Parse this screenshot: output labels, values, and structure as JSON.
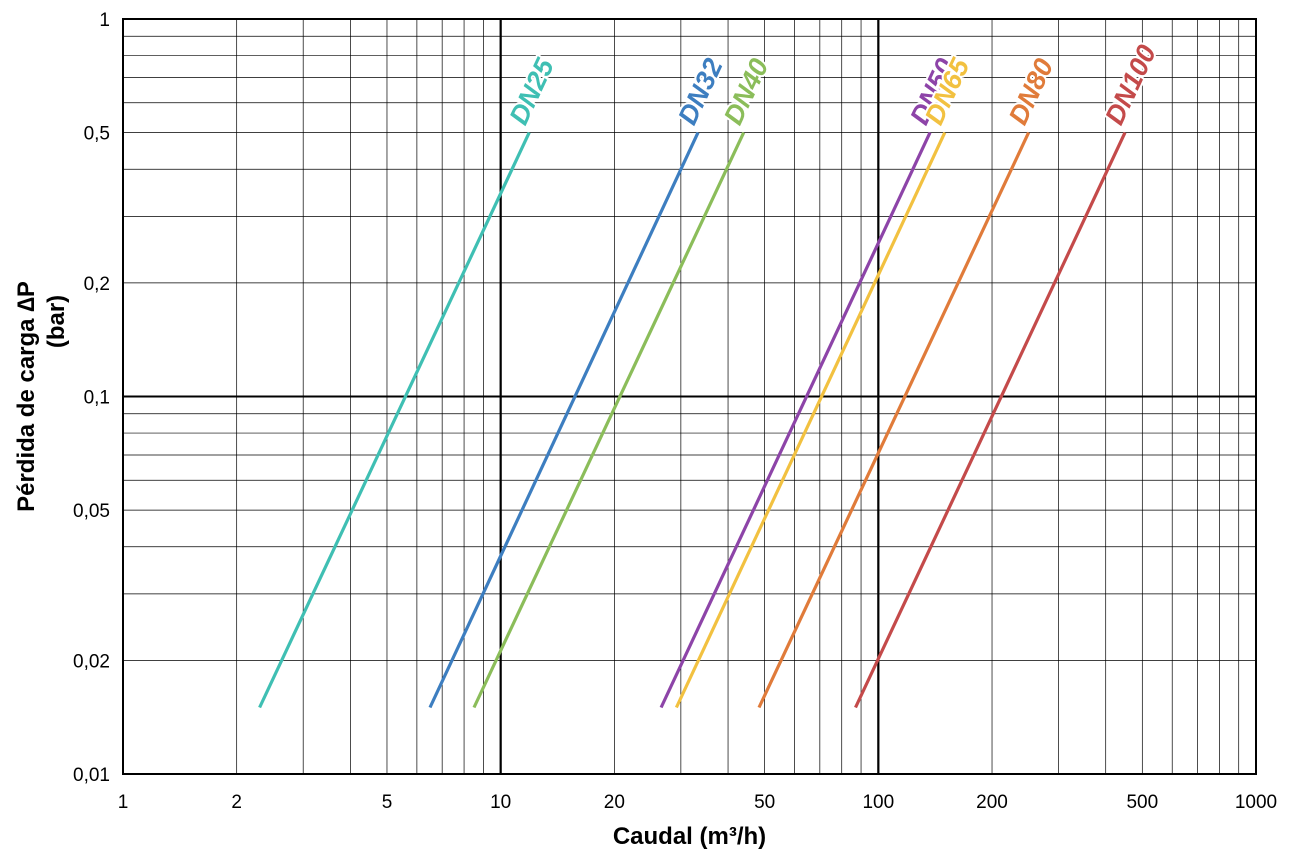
{
  "chart_data": {
    "type": "line",
    "x_scale": "log",
    "y_scale": "log",
    "xlim": [
      1,
      1000
    ],
    "ylim": [
      0.01,
      1
    ],
    "grid": true,
    "xlabel": "Caudal (m³/h)",
    "ylabel_line1": "Pérdida de carga ∆P",
    "ylabel_line2": "(bar)",
    "x_ticks": [
      {
        "value": 1,
        "label": "1"
      },
      {
        "value": 2,
        "label": "2"
      },
      {
        "value": 5,
        "label": "5"
      },
      {
        "value": 10,
        "label": "10"
      },
      {
        "value": 20,
        "label": "20"
      },
      {
        "value": 50,
        "label": "50"
      },
      {
        "value": 100,
        "label": "100"
      },
      {
        "value": 200,
        "label": "200"
      },
      {
        "value": 500,
        "label": "500"
      },
      {
        "value": 1000,
        "label": "1000"
      }
    ],
    "y_ticks": [
      {
        "value": 0.01,
        "label": "0,01"
      },
      {
        "value": 0.02,
        "label": "0,02"
      },
      {
        "value": 0.05,
        "label": "0,05"
      },
      {
        "value": 0.1,
        "label": "0,1"
      },
      {
        "value": 0.2,
        "label": "0,2"
      },
      {
        "value": 0.5,
        "label": "0,5"
      },
      {
        "value": 1,
        "label": "1"
      }
    ],
    "series": [
      {
        "name": "DN25",
        "color": "#3fbfb3",
        "x": [
          2.3,
          11.9
        ],
        "y": [
          0.015,
          0.5
        ]
      },
      {
        "name": "DN32",
        "color": "#3d7ec0",
        "x": [
          6.5,
          33.3
        ],
        "y": [
          0.015,
          0.5
        ]
      },
      {
        "name": "DN40",
        "color": "#8bbd5a",
        "x": [
          8.5,
          44.0
        ],
        "y": [
          0.015,
          0.5
        ]
      },
      {
        "name": "DN50",
        "color": "#8d44a8",
        "x": [
          26.6,
          137.0
        ],
        "y": [
          0.015,
          0.5
        ]
      },
      {
        "name": "DN65",
        "color": "#f2c140",
        "x": [
          29.2,
          150.0
        ],
        "y": [
          0.015,
          0.5
        ]
      },
      {
        "name": "DN80",
        "color": "#e07b3a",
        "x": [
          48.3,
          250.0
        ],
        "y": [
          0.015,
          0.5
        ]
      },
      {
        "name": "DN100",
        "color": "#c44a4a",
        "x": [
          87.0,
          450.0
        ],
        "y": [
          0.015,
          0.5
        ]
      }
    ]
  }
}
